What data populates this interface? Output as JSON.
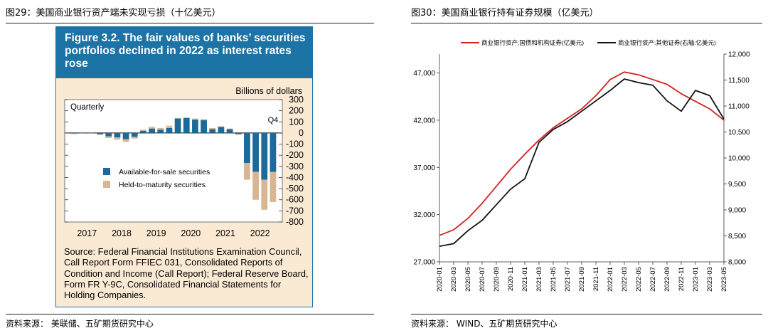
{
  "left": {
    "caption": "图29：美国商业银行资产端未实现亏损（十亿美元）",
    "panel_title": "Figure 3.2. The fair values of banks’ securities portfolios declined in 2022 as interest rates rose",
    "source_note": "Source: Federal Financial Institutions Examination Council, Call Report Form FFIEC 031, Consolidated Reports of Condition and Income (Call Report); Federal Reserve Board, Form FR Y-9C, Consolidated Financial Statements for Holding Companies.",
    "source": "资料来源：  美联储、五矿期货研究中心"
  },
  "right": {
    "caption": "图30：美国商业银行持有证券规模（亿美元）",
    "source": "资料来源：  WIND、五矿期货研究中心"
  },
  "chart_data": [
    {
      "type": "bar",
      "stacked": true,
      "unit_label": "Billions of dollars",
      "frequency_label": "Quarterly",
      "annotation": "Q4",
      "ylim": [
        -800,
        300
      ],
      "yticks": [
        300,
        200,
        100,
        0,
        -100,
        -200,
        -300,
        -400,
        -500,
        -600,
        -700,
        -800
      ],
      "year_labels": [
        "2017",
        "2018",
        "2019",
        "2020",
        "2021",
        "2022"
      ],
      "categories": [
        "2017Q1",
        "2017Q2",
        "2017Q3",
        "2017Q4",
        "2018Q1",
        "2018Q2",
        "2018Q3",
        "2018Q4",
        "2019Q1",
        "2019Q2",
        "2019Q3",
        "2019Q4",
        "2020Q1",
        "2020Q2",
        "2020Q3",
        "2020Q4",
        "2021Q1",
        "2021Q2",
        "2021Q3",
        "2021Q4",
        "2022Q1",
        "2022Q2",
        "2022Q3",
        "2022Q4"
      ],
      "series": [
        {
          "name": "Available-for-sale securities",
          "color": "#1b6a9a",
          "values": [
            -5,
            5,
            5,
            -12,
            -30,
            -40,
            -55,
            -35,
            20,
            40,
            30,
            45,
            130,
            135,
            120,
            115,
            35,
            55,
            35,
            -10,
            -270,
            -350,
            -420,
            -350
          ]
        },
        {
          "name": "Held-to-maturity securities",
          "color": "#d8b692",
          "values": [
            -3,
            3,
            3,
            -5,
            -15,
            -20,
            -25,
            -15,
            10,
            15,
            15,
            20,
            5,
            5,
            10,
            10,
            10,
            5,
            5,
            -5,
            -150,
            -250,
            -270,
            -270
          ]
        }
      ],
      "legend": "left-middle"
    },
    {
      "type": "line",
      "x_labels": [
        "2020-01",
        "2020-03",
        "2020-05",
        "2020-07",
        "2020-09",
        "2020-11",
        "2021-01",
        "2021-03",
        "2021-05",
        "2021-07",
        "2021-09",
        "2021-11",
        "2022-01",
        "2022-03",
        "2022-05",
        "2022-07",
        "2022-09",
        "2022-11",
        "2023-01",
        "2023-03",
        "2023-05"
      ],
      "y_left": {
        "ticks": [
          27000,
          32000,
          37000,
          42000,
          47000
        ],
        "lim": [
          27000,
          49000
        ]
      },
      "y_right": {
        "ticks": [
          8000,
          8500,
          9000,
          9500,
          10000,
          10500,
          11000,
          11500,
          12000
        ],
        "lim": [
          8000,
          12000
        ]
      },
      "series": [
        {
          "name": "商业银行资产:国债和机构证券(亿美元)",
          "axis": "left",
          "color": "#d42020",
          "values": [
            29800,
            30400,
            31600,
            33200,
            35000,
            36800,
            38400,
            39900,
            41200,
            42200,
            43200,
            44600,
            46300,
            47100,
            46800,
            46300,
            45800,
            44800,
            44000,
            43200,
            42000
          ]
        },
        {
          "name": "商业银行资产:其他证券(右轴:亿美元)",
          "axis": "right",
          "color": "#111111",
          "values": [
            8300,
            8350,
            8600,
            8800,
            9100,
            9400,
            9600,
            10300,
            10550,
            10700,
            10900,
            11100,
            11300,
            11520,
            11450,
            11400,
            11100,
            10900,
            11300,
            11200,
            10750
          ]
        }
      ],
      "legend": "top-center"
    }
  ]
}
